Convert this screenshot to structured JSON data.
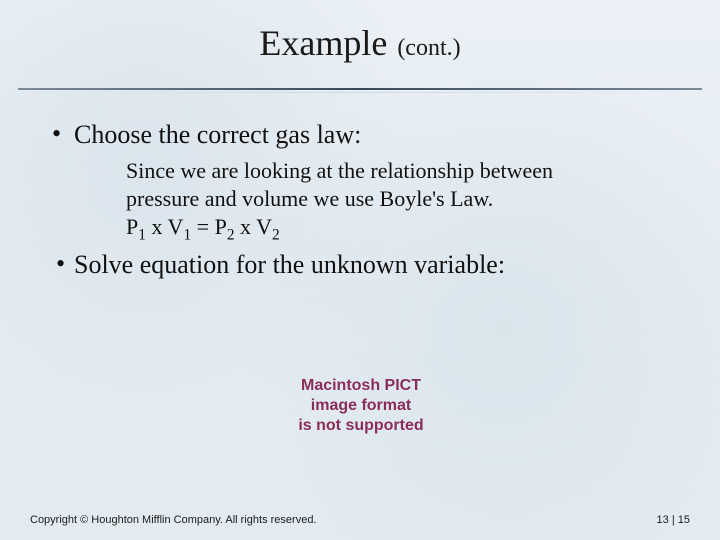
{
  "title": {
    "main": "Example",
    "sub": "(cont.)"
  },
  "bullets": [
    {
      "text": "Choose the correct gas law:"
    },
    {
      "text": "Solve equation for the unknown variable:"
    }
  ],
  "body": {
    "explanation": "Since we are looking at the relationship between pressure and volume we use Boyle's Law.",
    "equation_html": "P<sub>1</sub> x V<sub>1</sub> = P<sub>2</sub> x V<sub>2</sub>"
  },
  "pict_error": {
    "line1": "Macintosh PICT",
    "line2": "image format",
    "line3": "is not supported"
  },
  "footer": {
    "copyright": "Copyright © Houghton Mifflin Company. All rights reserved.",
    "page": "13 | 15"
  },
  "colors": {
    "background": "#e8eef3",
    "text": "#111111",
    "rule_dark": "#3a4a5a",
    "pict_color": "#8a2d5a"
  }
}
